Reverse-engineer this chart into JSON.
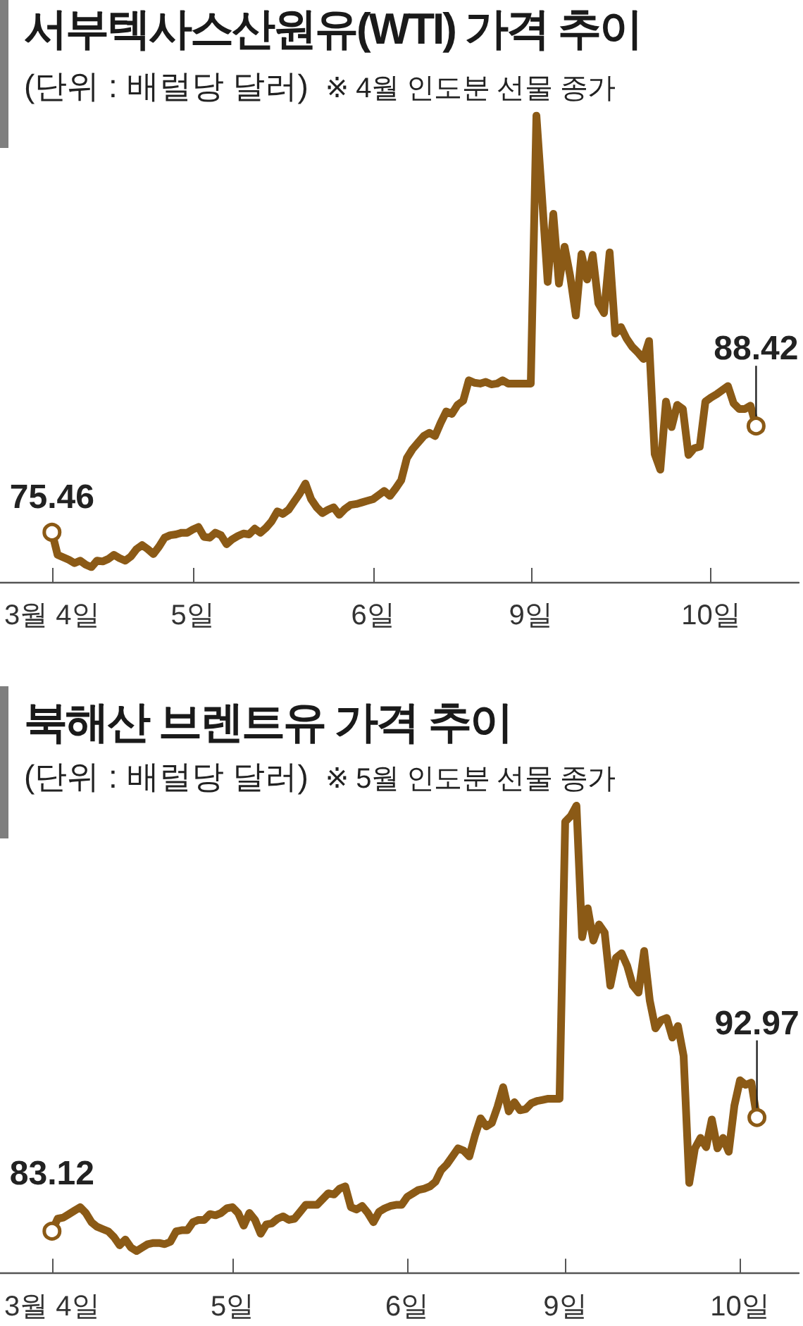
{
  "chart_data": [
    {
      "type": "line",
      "title": "서부텍사스산원유(WTI) 가격 추이",
      "subtitle": "(단위 : 배럴당 달러)",
      "annotations": [
        "※ 4월 인도분 선물 종가"
      ],
      "tick_labels": "x",
      "categories": [
        "3월 4일",
        null,
        null,
        null,
        null,
        null,
        null,
        null,
        null,
        null,
        null,
        null,
        null,
        null,
        null,
        null,
        null,
        null,
        null,
        null,
        null,
        null,
        null,
        null,
        null,
        "5일",
        null,
        null,
        null,
        null,
        null,
        null,
        null,
        null,
        null,
        null,
        null,
        null,
        null,
        null,
        null,
        null,
        null,
        null,
        null,
        null,
        null,
        null,
        null,
        null,
        null,
        null,
        null,
        null,
        null,
        null,
        null,
        "6일",
        null,
        null,
        null,
        null,
        null,
        null,
        null,
        null,
        null,
        null,
        null,
        null,
        null,
        null,
        null,
        null,
        null,
        null,
        null,
        null,
        null,
        null,
        null,
        null,
        null,
        null,
        null,
        "9일",
        null,
        null,
        null,
        null,
        null,
        null,
        null,
        null,
        null,
        null,
        null,
        null,
        null,
        null,
        null,
        null,
        null,
        null,
        null,
        null,
        null,
        null,
        null,
        null,
        null,
        null,
        null,
        null,
        null,
        null,
        null,
        "10일",
        null,
        null,
        null,
        null,
        null,
        null,
        null,
        null
      ],
      "series": [
        {
          "color": "#8b5a16",
          "values": [
            75.46,
            72.7,
            72.4,
            72.1,
            71.7,
            72.0,
            71.5,
            71.2,
            72.0,
            71.9,
            72.2,
            72.7,
            72.3,
            72.0,
            72.5,
            73.4,
            73.9,
            73.4,
            72.8,
            73.7,
            74.8,
            75.1,
            75.2,
            75.4,
            75.4,
            75.8,
            76.1,
            74.9,
            74.8,
            75.4,
            75.1,
            74.0,
            74.6,
            75.0,
            75.3,
            75.2,
            75.9,
            75.4,
            76.0,
            76.8,
            78.0,
            77.7,
            78.2,
            79.2,
            80.2,
            81.4,
            79.5,
            78.5,
            77.8,
            78.2,
            78.5,
            77.6,
            78.3,
            78.8,
            78.9,
            79.1,
            79.3,
            79.5,
            80.0,
            80.5,
            79.9,
            80.8,
            81.8,
            84.5,
            85.6,
            86.4,
            87.2,
            87.6,
            87.2,
            88.8,
            90.2,
            89.9,
            91.0,
            91.5,
            94.0,
            93.7,
            93.6,
            93.8,
            93.5,
            93.6,
            94.0,
            93.6,
            93.6,
            93.6,
            93.6,
            93.6,
            126.3,
            116.3,
            106.0,
            114.3,
            105.8,
            110.3,
            106.7,
            101.9,
            109.4,
            106.3,
            109.3,
            103.4,
            102.2,
            109.6,
            99.7,
            100.5,
            99.1,
            98.1,
            97.4,
            96.6,
            98.8,
            85.0,
            83.1,
            91.4,
            88.3,
            91.0,
            90.5,
            84.9,
            85.7,
            85.9,
            91.4,
            91.9,
            92.3,
            92.8,
            93.3,
            91.2,
            90.5,
            90.5,
            90.9,
            88.42
          ],
          "value_labels": [
            "75.46",
            null,
            null,
            null,
            null,
            null,
            null,
            null,
            null,
            null,
            null,
            null,
            null,
            null,
            null,
            null,
            null,
            null,
            null,
            null,
            null,
            null,
            null,
            null,
            null,
            null,
            null,
            null,
            null,
            null,
            null,
            null,
            null,
            null,
            null,
            null,
            null,
            null,
            null,
            null,
            null,
            null,
            null,
            null,
            null,
            null,
            null,
            null,
            null,
            null,
            null,
            null,
            null,
            null,
            null,
            null,
            null,
            null,
            null,
            null,
            null,
            null,
            null,
            null,
            null,
            null,
            null,
            null,
            null,
            null,
            null,
            null,
            null,
            null,
            null,
            null,
            null,
            null,
            null,
            null,
            null,
            null,
            null,
            null,
            null,
            null,
            null,
            null,
            null,
            null,
            null,
            null,
            null,
            null,
            null,
            null,
            null,
            null,
            null,
            null,
            null,
            null,
            null,
            null,
            null,
            null,
            null,
            null,
            null,
            null,
            null,
            null,
            null,
            null,
            null,
            null,
            null,
            null,
            null,
            null,
            null,
            null,
            null,
            null,
            null,
            "88.42"
          ]
        }
      ]
    },
    {
      "type": "line",
      "title": "북해산 브렌트유 가격 추이",
      "subtitle": "(단위 : 배럴당 달러)",
      "annotations": [
        "※ 5월 인도분 선물 종가"
      ],
      "tick_labels": "x",
      "categories": [
        "3월 4일",
        null,
        null,
        null,
        null,
        null,
        null,
        null,
        null,
        null,
        null,
        null,
        null,
        null,
        null,
        null,
        null,
        null,
        null,
        null,
        null,
        null,
        null,
        null,
        null,
        null,
        null,
        null,
        null,
        null,
        null,
        null,
        "5일",
        null,
        null,
        null,
        null,
        null,
        null,
        null,
        null,
        null,
        null,
        null,
        null,
        null,
        null,
        null,
        null,
        null,
        null,
        null,
        null,
        null,
        null,
        null,
        null,
        null,
        null,
        null,
        null,
        null,
        null,
        "6일",
        null,
        null,
        null,
        null,
        null,
        null,
        null,
        null,
        null,
        null,
        null,
        null,
        null,
        null,
        null,
        null,
        null,
        null,
        null,
        null,
        null,
        null,
        null,
        null,
        null,
        null,
        null,
        "9일",
        null,
        null,
        null,
        null,
        null,
        null,
        null,
        null,
        null,
        null,
        null,
        null,
        null,
        null,
        null,
        null,
        null,
        null,
        null,
        null,
        null,
        null,
        null,
        null,
        null,
        null,
        null,
        null,
        null,
        null,
        "10일",
        null,
        null,
        null
      ],
      "series": [
        {
          "color": "#8b5a16",
          "values": [
            83.12,
            84.2,
            84.3,
            84.6,
            84.9,
            85.2,
            84.7,
            83.9,
            83.5,
            83.3,
            83.1,
            82.6,
            81.9,
            82.4,
            81.7,
            81.4,
            81.7,
            82.0,
            82.1,
            82.1,
            82.0,
            82.2,
            83.1,
            83.2,
            83.2,
            83.9,
            84.1,
            84.1,
            84.6,
            84.5,
            84.7,
            85.1,
            85.2,
            84.7,
            83.6,
            84.7,
            84.1,
            82.9,
            83.7,
            83.8,
            84.2,
            84.4,
            84.1,
            84.2,
            84.8,
            85.4,
            85.4,
            85.4,
            85.9,
            86.4,
            86.3,
            86.8,
            87.0,
            85.2,
            85.0,
            85.3,
            84.7,
            83.9,
            84.8,
            85.1,
            85.3,
            85.4,
            85.4,
            86.1,
            86.4,
            86.7,
            86.8,
            87.0,
            87.4,
            88.4,
            88.9,
            89.6,
            90.3,
            90.1,
            89.6,
            91.4,
            92.9,
            92.2,
            92.5,
            93.9,
            95.6,
            93.5,
            94.3,
            93.6,
            93.7,
            94.2,
            94.4,
            94.5,
            94.6,
            94.6,
            94.6,
            118.6,
            119.1,
            120.0,
            108.6,
            111.1,
            108.3,
            109.7,
            109.0,
            104.4,
            106.8,
            107.2,
            106.1,
            104.4,
            103.8,
            107.4,
            103.1,
            100.7,
            101.4,
            101.6,
            99.9,
            100.9,
            98.3,
            87.3,
            90.3,
            91.2,
            90.4,
            92.8,
            90.3,
            91.2,
            90.0,
            94.0,
            96.2,
            95.8,
            96.0,
            92.97
          ],
          "value_labels": [
            "83.12",
            null,
            null,
            null,
            null,
            null,
            null,
            null,
            null,
            null,
            null,
            null,
            null,
            null,
            null,
            null,
            null,
            null,
            null,
            null,
            null,
            null,
            null,
            null,
            null,
            null,
            null,
            null,
            null,
            null,
            null,
            null,
            null,
            null,
            null,
            null,
            null,
            null,
            null,
            null,
            null,
            null,
            null,
            null,
            null,
            null,
            null,
            null,
            null,
            null,
            null,
            null,
            null,
            null,
            null,
            null,
            null,
            null,
            null,
            null,
            null,
            null,
            null,
            null,
            null,
            null,
            null,
            null,
            null,
            null,
            null,
            null,
            null,
            null,
            null,
            null,
            null,
            null,
            null,
            null,
            null,
            null,
            null,
            null,
            null,
            null,
            null,
            null,
            null,
            null,
            null,
            null,
            null,
            null,
            null,
            null,
            null,
            null,
            null,
            null,
            null,
            null,
            null,
            null,
            null,
            null,
            null,
            null,
            null,
            null,
            null,
            null,
            null,
            null,
            null,
            null,
            null,
            null,
            null,
            null,
            null,
            null,
            null,
            null,
            null,
            "92.97"
          ]
        }
      ]
    }
  ]
}
